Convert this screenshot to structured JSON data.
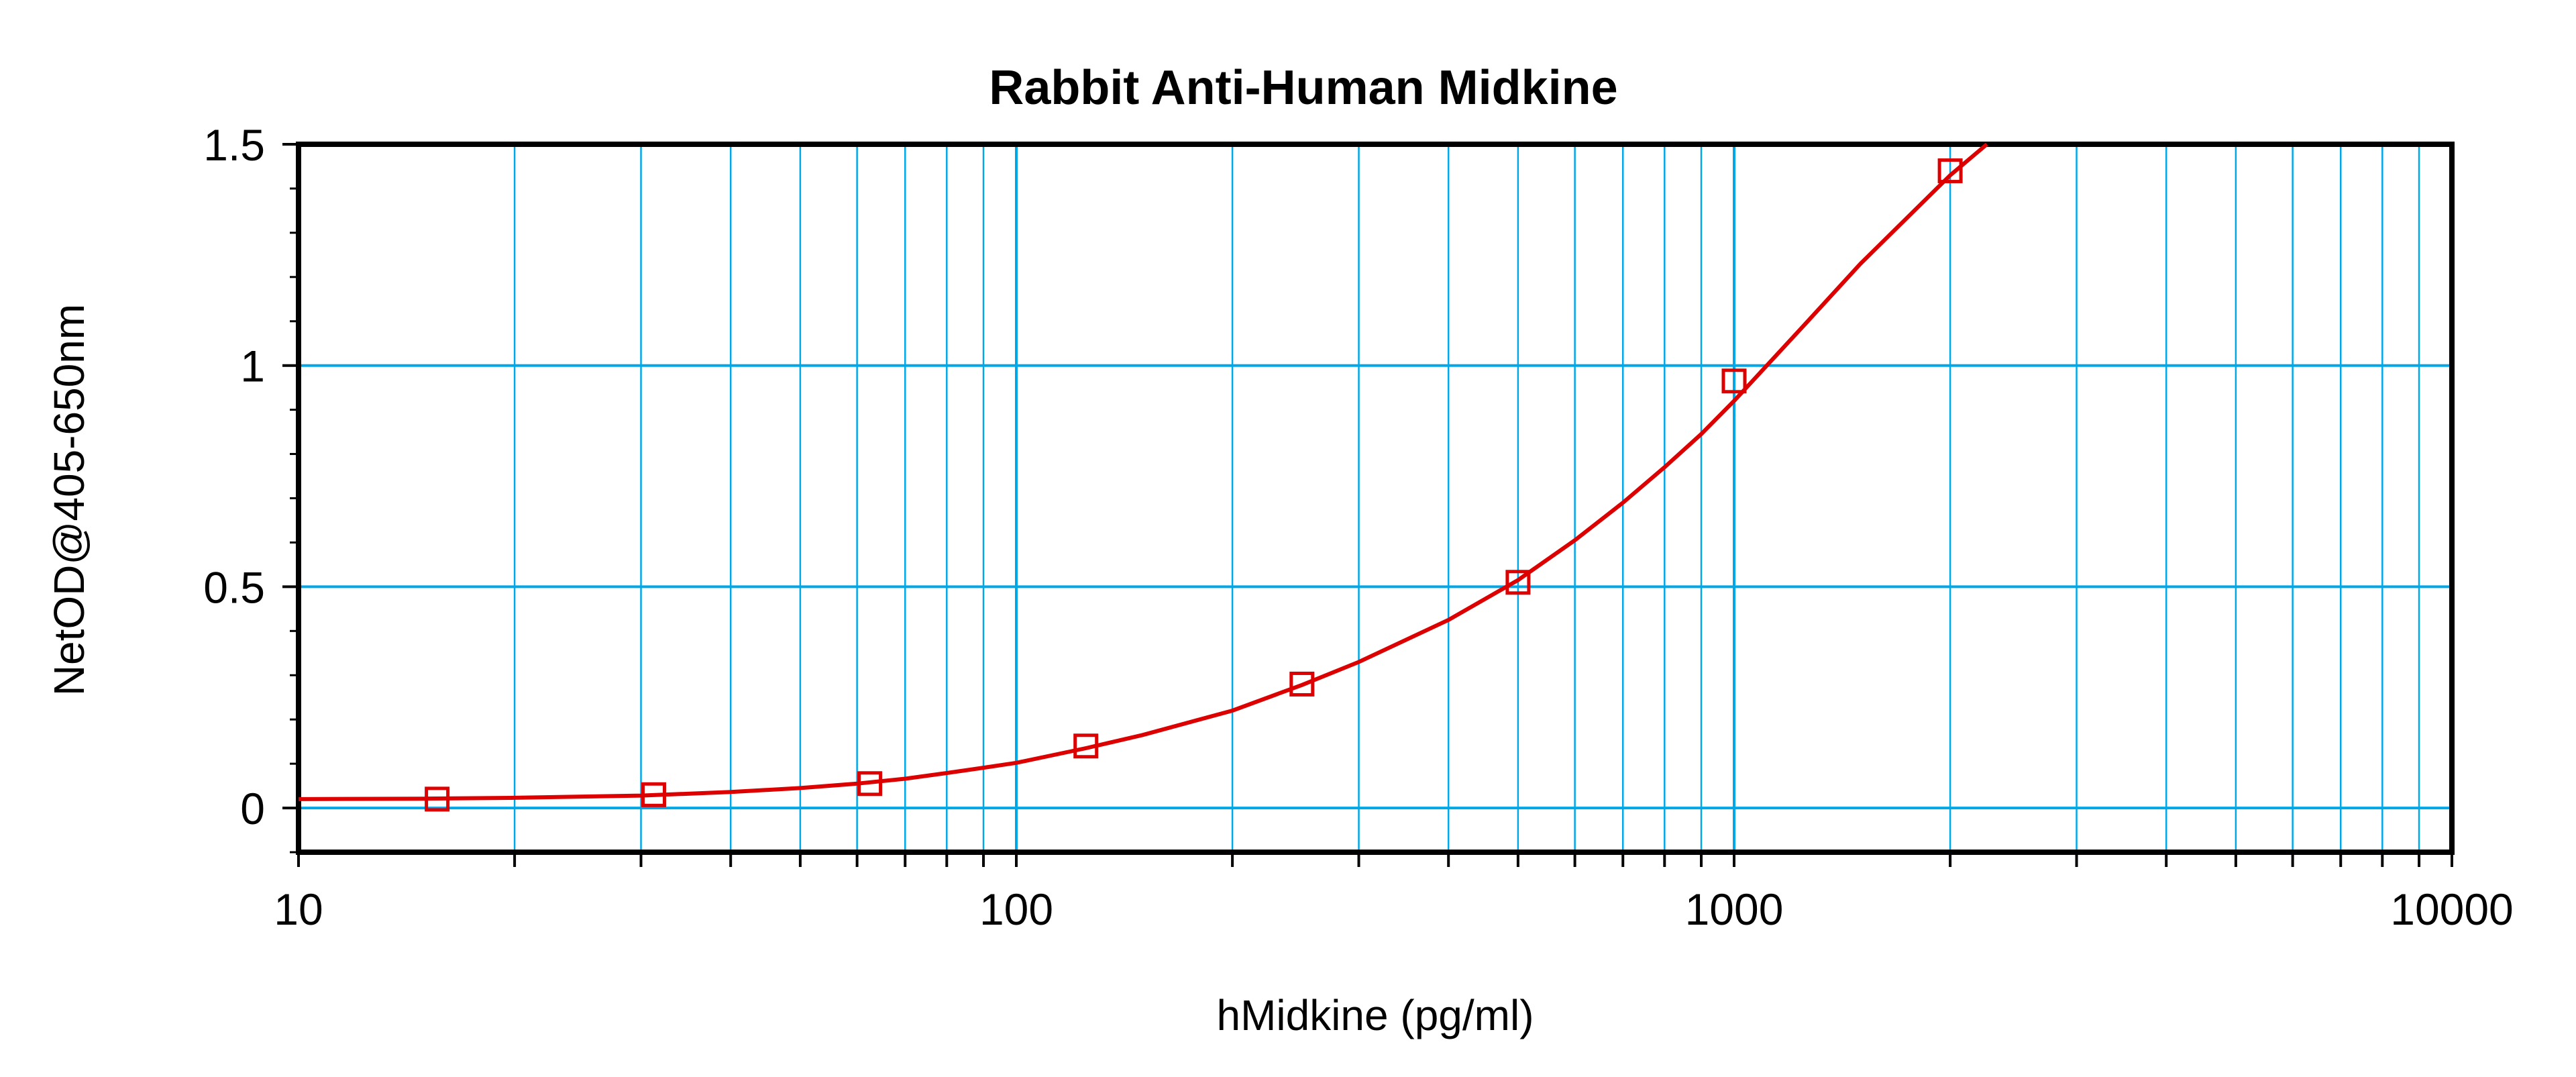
{
  "chart_data": {
    "type": "scatter",
    "title": "Rabbit Anti-Human Midkine",
    "xlabel": "hMidkine (pg/ml)",
    "ylabel": "NetOD@405-650nm",
    "x_scale": "log",
    "xlim": [
      10,
      10000
    ],
    "ylim": [
      -0.1,
      1.5
    ],
    "x_ticks": [
      10,
      100,
      1000,
      10000
    ],
    "x_tick_labels": [
      "10",
      "100",
      "1000",
      "10000"
    ],
    "y_ticks": [
      0,
      0.5,
      1,
      1.5
    ],
    "y_tick_labels": [
      "0",
      "0.5",
      "1",
      "1.5"
    ],
    "grid": true,
    "series": [
      {
        "x": [
          15.6,
          31.25,
          62.5,
          125,
          250,
          500,
          1000,
          2000
        ],
        "y": [
          0.02,
          0.03,
          0.055,
          0.14,
          0.28,
          0.51,
          0.965,
          1.44
        ]
      }
    ],
    "fit_curve": {
      "x": [
        10,
        15,
        20,
        30,
        40,
        50,
        60,
        70,
        80,
        90,
        100,
        125,
        150,
        200,
        250,
        300,
        400,
        500,
        600,
        700,
        800,
        900,
        1000,
        1250,
        1500,
        2000,
        2250
      ],
      "y": [
        0.02,
        0.021,
        0.023,
        0.028,
        0.036,
        0.045,
        0.055,
        0.066,
        0.079,
        0.091,
        0.102,
        0.135,
        0.165,
        0.22,
        0.278,
        0.33,
        0.425,
        0.515,
        0.605,
        0.69,
        0.77,
        0.845,
        0.92,
        1.09,
        1.23,
        1.43,
        1.5
      ]
    },
    "colors": {
      "grid": "#00a8e8",
      "series": "#dd0000",
      "axes": "#000000"
    }
  }
}
